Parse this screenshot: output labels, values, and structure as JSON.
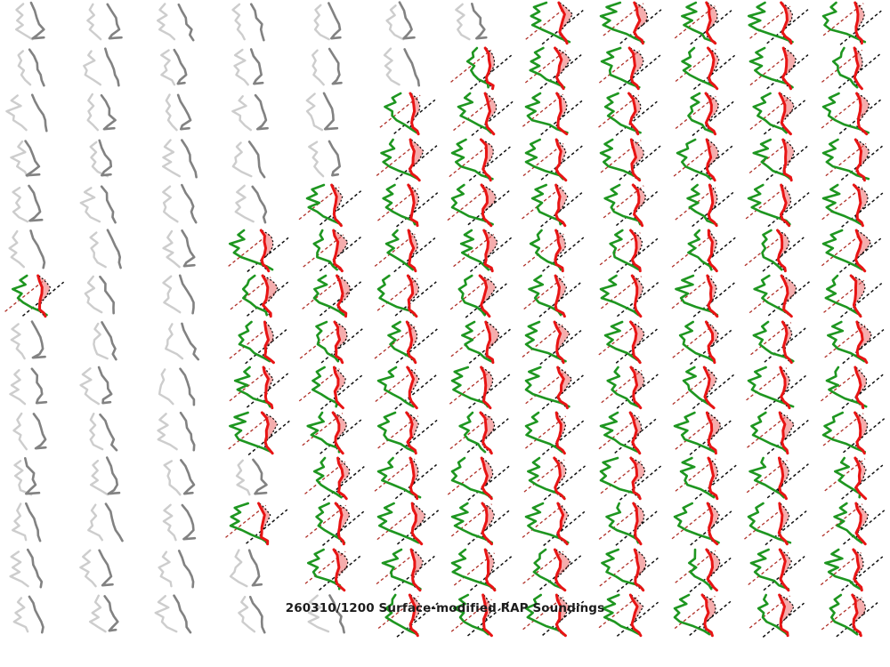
{
  "title": "260310/1200 Surface-modified RAP Soundings",
  "figure": {
    "background": "#ffffff",
    "grid_rows": 14,
    "grid_cols": 12
  },
  "colors": {
    "active_temperature": "#e81414",
    "active_dewpoint": "#1e9620",
    "parcel_trace_dotted": "#000000",
    "diagonal_dashed_black": "#111111",
    "diagonal_dashed_firebrick": "#b03028",
    "cape_fill": "#ed6a6a",
    "cin_fill": "#8cb2dc",
    "inactive_temperature": "#828282",
    "inactive_dewpoint": "#cdcdcd"
  },
  "chart_data": {
    "type": "line",
    "subtype": "small-multiples-sounding-thumbnails",
    "title": "260310/1200 Surface-modified RAP Soundings",
    "grid_rows": 14,
    "grid_cols": 12,
    "axes": "none",
    "gridlines": false,
    "cell_states_legend": {
      "g": "inactive-gray-sounding",
      "c": "active-colored-sounding"
    },
    "cell_states": [
      "gggggggccccc",
      "ggggggcccccc",
      "gggggccccccc",
      "gggggccccccc",
      "ggggcccccccc",
      "gggccccccccc",
      "cggccccccccc",
      "gggccccccccc",
      "gggccccccccc",
      "gggccccccccc",
      "ggggcccccccc",
      "gggccccccccc",
      "ggggcccccccc",
      "gggggccccccc"
    ],
    "series_legend": [
      {
        "name": "temperature-active",
        "color": "#e81414",
        "style": "solid"
      },
      {
        "name": "dewpoint-active",
        "color": "#1e9620",
        "style": "solid"
      },
      {
        "name": "parcel-trace",
        "color": "#000000",
        "style": "dotted"
      },
      {
        "name": "diagonal-reference-black",
        "color": "#111111",
        "style": "dashed"
      },
      {
        "name": "diagonal-reference-firebrick",
        "color": "#b03028",
        "style": "dashed"
      },
      {
        "name": "cape-area",
        "color": "#ed6a6a",
        "style": "fill"
      },
      {
        "name": "cin-area",
        "color": "#8cb2dc",
        "style": "fill"
      },
      {
        "name": "temperature-inactive",
        "color": "#828282",
        "style": "solid"
      },
      {
        "name": "dewpoint-inactive",
        "color": "#cdcdcd",
        "style": "solid"
      }
    ]
  }
}
